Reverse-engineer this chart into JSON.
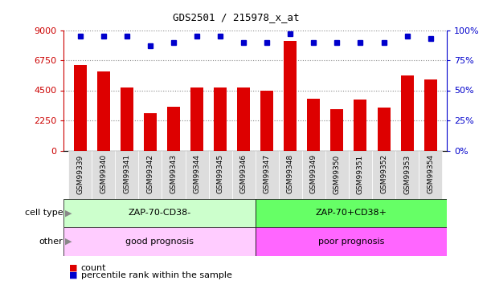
{
  "title": "GDS2501 / 215978_x_at",
  "samples": [
    "GSM99339",
    "GSM99340",
    "GSM99341",
    "GSM99342",
    "GSM99343",
    "GSM99344",
    "GSM99345",
    "GSM99346",
    "GSM99347",
    "GSM99348",
    "GSM99349",
    "GSM99350",
    "GSM99351",
    "GSM99352",
    "GSM99353",
    "GSM99354"
  ],
  "counts": [
    6400,
    5900,
    4700,
    2800,
    3300,
    4700,
    4700,
    4700,
    4500,
    8200,
    3900,
    3100,
    3800,
    3200,
    5600,
    5300
  ],
  "percentile_ranks": [
    95,
    95,
    95,
    87,
    90,
    95,
    95,
    90,
    90,
    97,
    90,
    90,
    90,
    90,
    95,
    93
  ],
  "bar_color": "#dd0000",
  "dot_color": "#0000cc",
  "ylim_left": [
    0,
    9000
  ],
  "ylim_right": [
    0,
    100
  ],
  "yticks_left": [
    0,
    2250,
    4500,
    6750,
    9000
  ],
  "yticks_right": [
    0,
    25,
    50,
    75,
    100
  ],
  "cell_type_labels": [
    "ZAP-70-CD38-",
    "ZAP-70+CD38+"
  ],
  "cell_type_colors": [
    "#ccffcc",
    "#66ff66"
  ],
  "other_labels": [
    "good prognosis",
    "poor prognosis"
  ],
  "other_colors": [
    "#ffccff",
    "#ff66ff"
  ],
  "split_index": 8,
  "legend_count_label": "count",
  "legend_pct_label": "percentile rank within the sample",
  "cell_type_row_label": "cell type",
  "other_row_label": "other",
  "background_color": "#ffffff",
  "tick_label_color_left": "#cc0000",
  "tick_label_color_right": "#0000cc",
  "grid_color": "#888888",
  "xtick_bg_color": "#dddddd",
  "left_label_color": "#888888",
  "arrow_color": "#888888"
}
